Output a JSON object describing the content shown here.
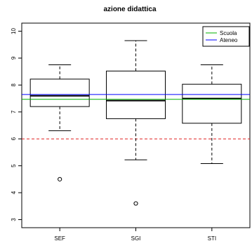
{
  "chart_data": {
    "type": "boxplot",
    "title": "azione didattica",
    "xlabel": "",
    "ylabel": "",
    "categories": [
      "SEF",
      "SGI",
      "STI"
    ],
    "ylim": [
      2.7,
      10.3
    ],
    "y_ticks": [
      3,
      4,
      5,
      6,
      7,
      8,
      9,
      10
    ],
    "boxes": [
      {
        "category": "SEF",
        "whisker_low": 6.3,
        "q1": 7.2,
        "median": 7.6,
        "q3": 8.22,
        "whisker_high": 8.75,
        "outliers": [
          4.5
        ]
      },
      {
        "category": "SGI",
        "whisker_low": 5.22,
        "q1": 6.75,
        "median": 7.42,
        "q3": 8.52,
        "whisker_high": 9.65,
        "outliers": [
          3.6
        ]
      },
      {
        "category": "STI",
        "whisker_low": 5.08,
        "q1": 6.58,
        "median": 7.5,
        "q3": 8.03,
        "whisker_high": 8.75,
        "outliers": []
      }
    ],
    "reference_lines": [
      {
        "name": "Scuola",
        "value": 7.47,
        "color": "#00b000",
        "style": "solid"
      },
      {
        "name": "Ateneo",
        "value": 7.65,
        "color": "#0000ff",
        "style": "solid"
      },
      {
        "name": "",
        "value": 6.0,
        "color": "#e02020",
        "style": "dashed"
      }
    ],
    "legend": {
      "position": "top-right",
      "entries": [
        "Scuola",
        "Ateneo"
      ]
    },
    "grid": false
  }
}
